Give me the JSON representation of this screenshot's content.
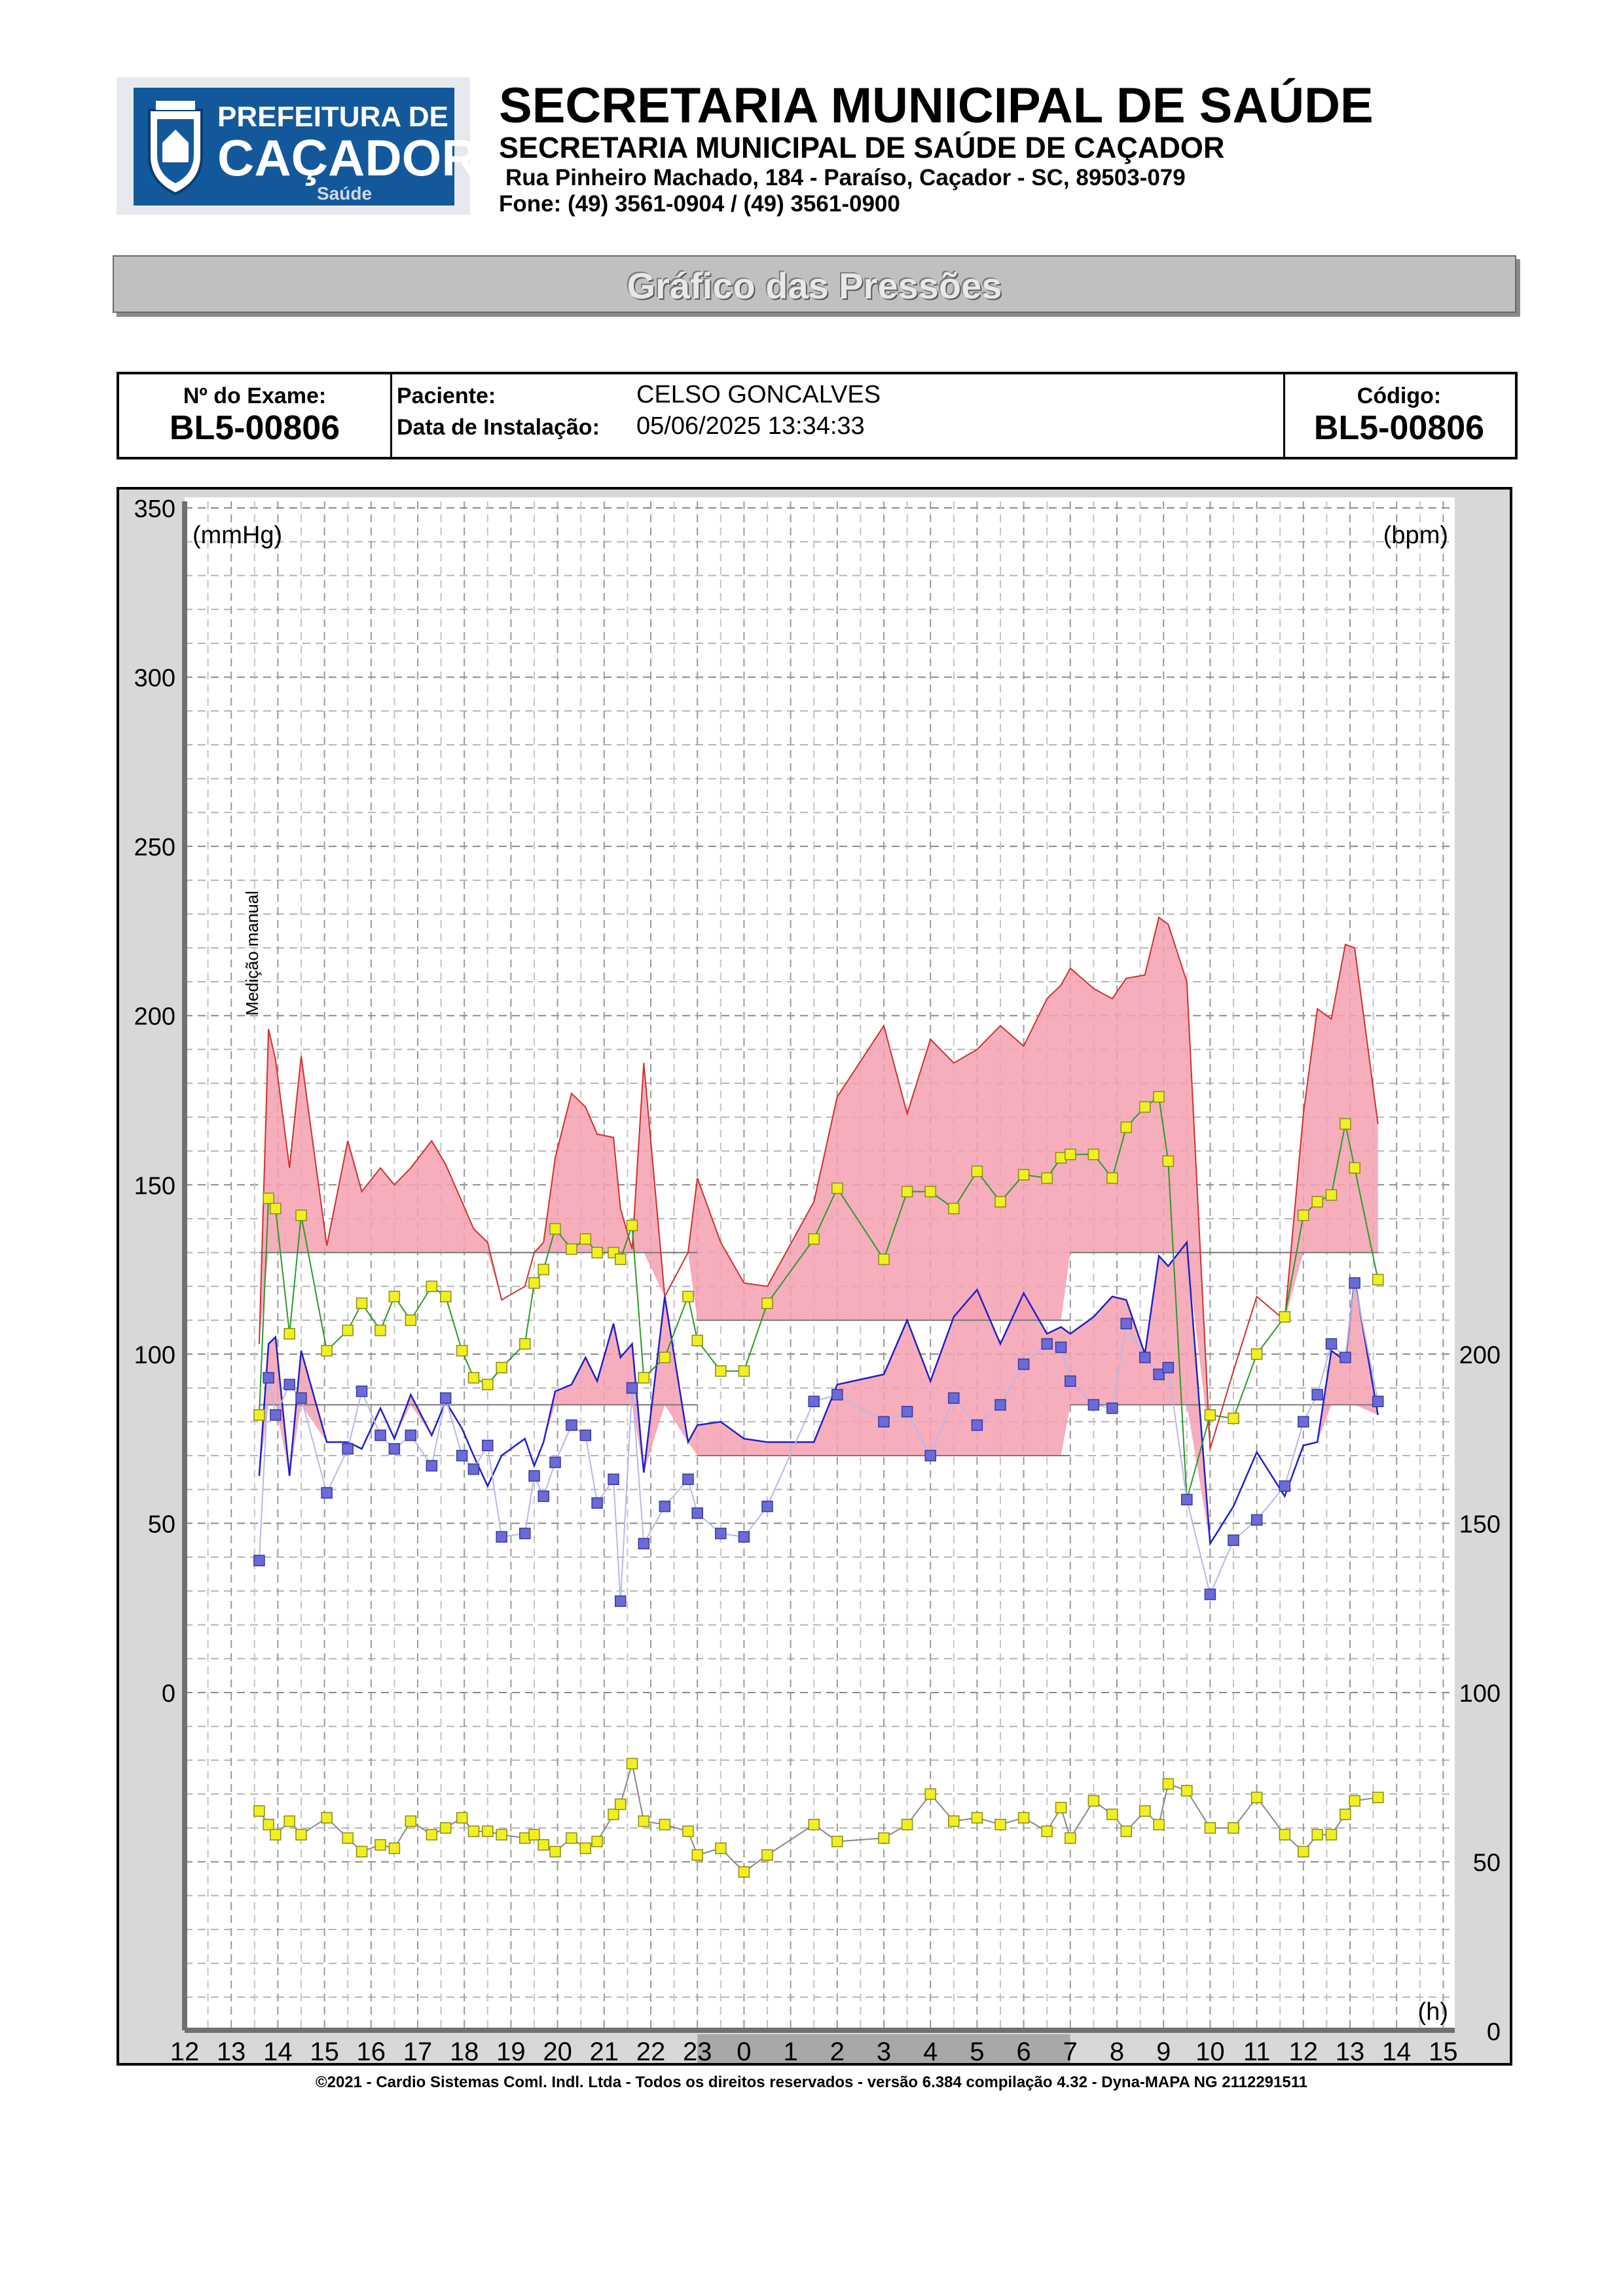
{
  "header": {
    "logo_line1": "PREFEITURA DE",
    "logo_line2": "CAÇADOR",
    "logo_line3": "Saúde",
    "title": "SECRETARIA MUNICIPAL DE SAÚDE",
    "subtitle": "SECRETARIA MUNICIPAL DE SAÚDE DE CAÇADOR",
    "address": "Rua Pinheiro Machado, 184 - Paraíso, Caçador - SC, 89503-079",
    "phone": "Fone: (49) 3561-0904  / (49) 3561-0900"
  },
  "banner": {
    "title": "Gráfico das Pressões"
  },
  "exam": {
    "exam_label": "Nº do Exame:",
    "exam_value": "BL5-00806",
    "patient_label": "Paciente:",
    "patient_value": "CELSO  GONCALVES",
    "install_label": "Data de Instalação:",
    "install_value": "05/06/2025 13:34:33",
    "code_label": "Código:",
    "code_value": "BL5-00806"
  },
  "chart_data": {
    "type": "line",
    "left_axis_label": "(mmHg)",
    "right_axis_label": "(bpm)",
    "x_axis_label": "(h)",
    "manual_annotation": "Medição manual",
    "left_ticks": [
      350,
      300,
      250,
      200,
      150,
      100,
      50,
      0
    ],
    "right_ticks": [
      {
        "label": "200",
        "mmhg": 100
      },
      {
        "label": "150",
        "mmhg": 50
      },
      {
        "label": "100",
        "mmhg": 0
      },
      {
        "label": "50",
        "mmhg": -50
      },
      {
        "label": "0",
        "mmhg": -100
      }
    ],
    "x_ticks": [
      "12",
      "13",
      "14",
      "15",
      "16",
      "17",
      "18",
      "19",
      "20",
      "21",
      "22",
      "23",
      "0",
      "1",
      "2",
      "3",
      "4",
      "5",
      "6",
      "7",
      "8",
      "9",
      "10",
      "11",
      "12",
      "13",
      "14",
      "15"
    ],
    "ylim_mmhg": [
      -100,
      350
    ],
    "night_period_hours": [
      23.0,
      31.0
    ],
    "limits": {
      "day_systolic": 130,
      "night_systolic": 110,
      "day_diastolic": 85,
      "night_diastolic": 70
    },
    "series": [
      {
        "name": "Sistólica",
        "color": "#d03030",
        "x": [
          13.6,
          13.8,
          13.95,
          14.25,
          14.5,
          15.05,
          15.5,
          15.8,
          16.2,
          16.5,
          16.85,
          17.3,
          17.6,
          17.95,
          18.2,
          18.5,
          18.8,
          19.3,
          19.5,
          19.7,
          19.95,
          20.3,
          20.6,
          20.85,
          21.2,
          21.35,
          21.6,
          21.85,
          22.3,
          22.8,
          23.0,
          23.5,
          24.0,
          24.5,
          25.5,
          26.0,
          27.0,
          27.5,
          28.0,
          28.5,
          29.0,
          29.5,
          30.0,
          30.5,
          30.8,
          31.0,
          31.5,
          31.9,
          32.2,
          32.6,
          32.9,
          33.1,
          33.5,
          34.0,
          34.5,
          35.0,
          35.6,
          36.0,
          36.3,
          36.6,
          36.9,
          37.1,
          37.6
        ],
        "values": [
          103,
          196,
          187,
          155,
          188,
          132,
          163,
          148,
          155,
          150,
          155,
          163,
          156,
          145,
          137,
          133,
          116,
          120,
          130,
          133,
          158,
          177,
          173,
          165,
          164,
          143,
          131,
          186,
          117,
          130,
          152,
          133,
          121,
          120,
          145,
          176,
          197,
          171,
          193,
          186,
          190,
          197,
          191,
          205,
          209,
          214,
          208,
          205,
          211,
          212,
          229,
          227,
          210,
          72,
          95,
          117,
          110,
          171,
          202,
          199,
          221,
          220,
          168
        ]
      },
      {
        "name": "Diastólica",
        "color": "#2020c8",
        "x": [
          13.6,
          13.8,
          13.95,
          14.25,
          14.5,
          15.05,
          15.5,
          15.8,
          16.2,
          16.5,
          16.85,
          17.3,
          17.6,
          17.95,
          18.2,
          18.5,
          18.8,
          19.3,
          19.5,
          19.7,
          19.95,
          20.3,
          20.6,
          20.85,
          21.2,
          21.35,
          21.6,
          21.85,
          22.3,
          22.8,
          23.0,
          23.5,
          24.0,
          24.5,
          25.5,
          26.0,
          27.0,
          27.5,
          28.0,
          28.5,
          29.0,
          29.5,
          30.0,
          30.5,
          30.8,
          31.0,
          31.5,
          31.9,
          32.2,
          32.6,
          32.9,
          33.1,
          33.5,
          34.0,
          34.5,
          35.0,
          35.6,
          36.0,
          36.3,
          36.6,
          36.9,
          37.1,
          37.6
        ],
        "values": [
          64,
          103,
          105,
          64,
          101,
          74,
          74,
          72,
          84,
          75,
          88,
          76,
          86,
          78,
          70,
          61,
          70,
          75,
          67,
          74,
          89,
          91,
          99,
          92,
          109,
          99,
          103,
          65,
          117,
          74,
          79,
          80,
          75,
          74,
          74,
          91,
          94,
          110,
          92,
          111,
          119,
          103,
          118,
          106,
          108,
          106,
          111,
          117,
          116,
          100,
          129,
          126,
          133,
          44,
          55,
          71,
          58,
          73,
          74,
          101,
          98,
          122,
          82
        ]
      },
      {
        "name": "Média",
        "color": "#2a9a2a",
        "x": [
          13.6,
          13.8,
          13.95,
          14.25,
          14.5,
          15.05,
          15.5,
          15.8,
          16.2,
          16.5,
          16.85,
          17.3,
          17.6,
          17.95,
          18.2,
          18.5,
          18.8,
          19.3,
          19.5,
          19.7,
          19.95,
          20.3,
          20.6,
          20.85,
          21.2,
          21.35,
          21.6,
          21.85,
          22.3,
          22.8,
          23.0,
          23.5,
          24.0,
          24.5,
          25.5,
          26.0,
          27.0,
          27.5,
          28.0,
          28.5,
          29.0,
          29.5,
          30.0,
          30.5,
          30.8,
          31.0,
          31.5,
          31.9,
          32.2,
          32.6,
          32.9,
          33.1,
          33.5,
          34.0,
          34.5,
          35.0,
          35.6,
          36.0,
          36.3,
          36.6,
          36.9,
          37.1,
          37.6
        ],
        "values": [
          82,
          146,
          143,
          106,
          141,
          101,
          107,
          115,
          107,
          117,
          110,
          120,
          117,
          101,
          93,
          91,
          96,
          103,
          121,
          125,
          137,
          131,
          134,
          130,
          130,
          128,
          138,
          93,
          99,
          117,
          104,
          95,
          95,
          115,
          134,
          149,
          128,
          148,
          148,
          143,
          154,
          145,
          153,
          152,
          158,
          159,
          159,
          152,
          167,
          173,
          176,
          157,
          57,
          82,
          81,
          100,
          111,
          141,
          145,
          147,
          168,
          155,
          122
        ]
      },
      {
        "name": "Frequência cardíaca",
        "color": "#888888",
        "x": [
          13.6,
          13.8,
          13.95,
          14.25,
          14.5,
          15.05,
          15.5,
          15.8,
          16.2,
          16.5,
          16.85,
          17.3,
          17.6,
          17.95,
          18.2,
          18.5,
          18.8,
          19.3,
          19.5,
          19.7,
          19.95,
          20.3,
          20.6,
          20.85,
          21.2,
          21.35,
          21.6,
          21.85,
          22.3,
          22.8,
          23.0,
          23.5,
          24.0,
          24.5,
          25.5,
          26.0,
          27.0,
          27.5,
          28.0,
          28.5,
          29.0,
          29.5,
          30.0,
          30.5,
          30.8,
          31.0,
          31.5,
          31.9,
          32.2,
          32.6,
          32.9,
          33.1,
          33.5,
          34.0,
          34.5,
          35.0,
          35.6,
          36.0,
          36.3,
          36.6,
          36.9,
          37.1,
          37.6
        ],
        "values": [
          65,
          61,
          58,
          62,
          58,
          63,
          57,
          53,
          55,
          54,
          62,
          58,
          60,
          63,
          59,
          59,
          58,
          57,
          58,
          55,
          53,
          57,
          54,
          56,
          64,
          67,
          79,
          62,
          61,
          59,
          52,
          54,
          47,
          52,
          61,
          56,
          57,
          61,
          70,
          62,
          63,
          61,
          63,
          59,
          66,
          57,
          68,
          64,
          59,
          65,
          61,
          73,
          71,
          60,
          60,
          69,
          58,
          53,
          58,
          58,
          64,
          68,
          69
        ]
      },
      {
        "name": "PAS (marcador)",
        "color": "#4040c0",
        "x": [
          13.6,
          13.8,
          13.95,
          14.25,
          14.5,
          15.05,
          15.5,
          15.8,
          16.2,
          16.5,
          16.85,
          17.3,
          17.6,
          17.95,
          18.2,
          18.5,
          18.8,
          19.3,
          19.5,
          19.7,
          19.95,
          20.3,
          20.6,
          20.85,
          21.2,
          21.35,
          21.6,
          21.85,
          22.3,
          22.8,
          23.0,
          23.5,
          24.0,
          24.5,
          25.5,
          26.0,
          27.0,
          27.5,
          28.0,
          28.5,
          29.0,
          29.5,
          30.0,
          30.5,
          30.8,
          31.0,
          31.5,
          31.9,
          32.2,
          32.6,
          32.9,
          33.1,
          33.5,
          34.0,
          34.5,
          35.0,
          35.6,
          36.0,
          36.3,
          36.6,
          36.9,
          37.1,
          37.6
        ],
        "values": [
          39,
          93,
          82,
          91,
          87,
          59,
          72,
          89,
          76,
          72,
          76,
          67,
          87,
          70,
          66,
          73,
          46,
          47,
          64,
          58,
          68,
          79,
          76,
          56,
          63,
          27,
          90,
          44,
          55,
          63,
          53,
          47,
          46,
          55,
          86,
          88,
          80,
          83,
          70,
          87,
          79,
          85,
          97,
          103,
          102,
          92,
          85,
          84,
          109,
          99,
          94,
          96,
          57,
          29,
          45,
          51,
          61,
          80,
          88,
          103,
          99,
          121,
          86
        ]
      }
    ]
  },
  "footer": {
    "text": "©2021 - Cardio Sistemas Coml. Indl. Ltda - Todos os direitos reservados - versão 6.384 compilação 4.32 - Dyna-MAPA NG 2112291511"
  },
  "colors": {
    "logo_blue": "#14589c",
    "fill_pink": "#f5a0b0",
    "bpm_marker": "#f0f020",
    "grid": "#9a9a9a"
  }
}
